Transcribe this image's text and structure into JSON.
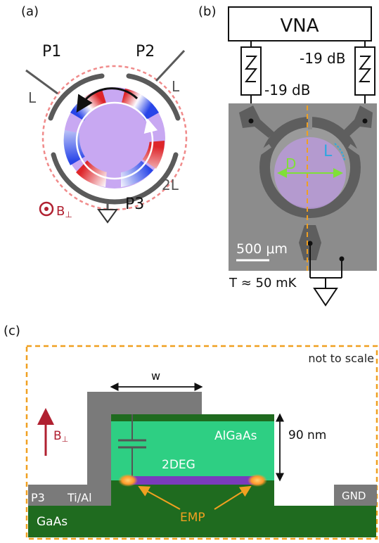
{
  "panel_a": {
    "tag": "(a)",
    "port1": "P1",
    "port2": "P2",
    "port3": "P3",
    "arm_left": "L",
    "arm_right": "L",
    "arm_bottom": "2L",
    "field_label": "B",
    "field_sub": "⊥"
  },
  "panel_b": {
    "tag": "(b)",
    "instrument": "VNA",
    "attenuation_left": "-19 dB",
    "attenuation_right": "-19 dB",
    "diameter_label": "D",
    "arc_label": "L",
    "scale_value": "500",
    "scale_unit": "μm",
    "temperature": "T ≈ 50 mK"
  },
  "panel_c": {
    "tag": "(c)",
    "note": "not to scale",
    "width_label": "w",
    "field_label": "B",
    "field_sub": "⊥",
    "barrier_label": "AlGaAs",
    "thickness_label": "90 nm",
    "twodeg_label": "2DEG",
    "contact_label": "P3",
    "metal_label": "Ti/Al",
    "ground_label": "GND",
    "substrate_label": "GaAs",
    "emp_label": "EMP"
  },
  "colors": {
    "gate": "#5a5a5a",
    "dashed_ring": "#f08a8a",
    "field_red": "#c0392b",
    "orange_dash": "#f0a020",
    "gaas": "#1f6b1f",
    "algaas": "#2ecf83",
    "emp_purple": "#7a3bbd",
    "emp_glow": "#ff9a2a",
    "micrograph": "#8a8a8a",
    "disk_purple": "#b99ad8",
    "cyan": "#2ea7e0",
    "green_arrow": "#7fe038"
  }
}
